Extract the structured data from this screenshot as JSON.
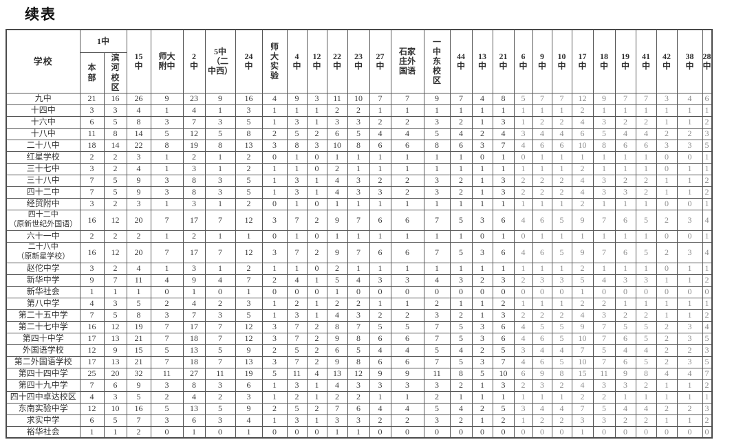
{
  "page": {
    "title": "续表"
  },
  "table": {
    "corner_header": "学校",
    "group_header": {
      "label": "1中",
      "children": [
        {
          "label": "本部",
          "display": "本\n部"
        },
        {
          "label": "滨河校区",
          "display": "滨\n河\n校\n区"
        }
      ]
    },
    "columns": [
      {
        "label": "15中",
        "display": "15\n中"
      },
      {
        "label": "师大附中",
        "display": "师大\n附中"
      },
      {
        "label": "2中",
        "display": "2\n中"
      },
      {
        "label": "5中（二中西）",
        "display": "5中\n（二\n中西）"
      },
      {
        "label": "24中",
        "display": "24\n中"
      },
      {
        "label": "师大实验",
        "display": "师\n大\n实\n验"
      },
      {
        "label": "4中",
        "display": "4\n中"
      },
      {
        "label": "12中",
        "display": "12\n中"
      },
      {
        "label": "22中",
        "display": "22\n中"
      },
      {
        "label": "23中",
        "display": "23\n中"
      },
      {
        "label": "27中",
        "display": "27\n中"
      },
      {
        "label": "石家庄外国语",
        "display": "石家\n庄外\n国语"
      },
      {
        "label": "一中东校区",
        "display": "一\n中\n东\n校\n区"
      },
      {
        "label": "44中",
        "display": "44\n中"
      },
      {
        "label": "13中",
        "display": "13\n中"
      },
      {
        "label": "21中",
        "display": "21\n中"
      },
      {
        "label": "6中",
        "display": "6\n中"
      },
      {
        "label": "9中",
        "display": "9\n中"
      },
      {
        "label": "10中",
        "display": "10\n中"
      },
      {
        "label": "17中",
        "display": "17\n中"
      },
      {
        "label": "18中",
        "display": "18\n中"
      },
      {
        "label": "19中",
        "display": "19\n中"
      },
      {
        "label": "41中",
        "display": "41\n中"
      },
      {
        "label": "42中",
        "display": "42\n中"
      },
      {
        "label": "38中",
        "display": "38\n中"
      },
      {
        "label": "28中",
        "display": "28\n中"
      }
    ],
    "rows": [
      {
        "school": "九中",
        "values": [
          21,
          16,
          26,
          9,
          23,
          9,
          16,
          4,
          9,
          3,
          11,
          10,
          7,
          7,
          9,
          7,
          4,
          8,
          5,
          7,
          7,
          12,
          9,
          7,
          7,
          3,
          4,
          6
        ]
      },
      {
        "school": "十四中",
        "values": [
          3,
          3,
          4,
          1,
          4,
          1,
          3,
          1,
          1,
          1,
          2,
          2,
          1,
          1,
          1,
          1,
          1,
          1,
          1,
          1,
          1,
          2,
          1,
          1,
          1,
          1,
          1,
          1
        ]
      },
      {
        "school": "十六中",
        "values": [
          6,
          5,
          8,
          3,
          7,
          3,
          5,
          1,
          3,
          1,
          3,
          3,
          2,
          2,
          3,
          2,
          1,
          3,
          1,
          2,
          2,
          4,
          3,
          2,
          2,
          1,
          1,
          2
        ]
      },
      {
        "school": "十八中",
        "values": [
          11,
          8,
          14,
          5,
          12,
          5,
          8,
          2,
          5,
          2,
          6,
          5,
          4,
          4,
          5,
          4,
          2,
          4,
          3,
          4,
          4,
          6,
          5,
          4,
          4,
          2,
          2,
          3
        ]
      },
      {
        "school": "二十八中",
        "values": [
          18,
          14,
          22,
          8,
          19,
          8,
          13,
          3,
          8,
          3,
          10,
          8,
          6,
          6,
          8,
          6,
          3,
          7,
          4,
          6,
          6,
          10,
          8,
          6,
          6,
          3,
          3,
          5
        ]
      },
      {
        "school": "红星学校",
        "values": [
          2,
          2,
          3,
          1,
          2,
          1,
          2,
          0,
          1,
          0,
          1,
          1,
          1,
          1,
          1,
          1,
          0,
          1,
          0,
          1,
          1,
          1,
          1,
          1,
          1,
          0,
          0,
          1
        ]
      },
      {
        "school": "三十七中",
        "values": [
          3,
          2,
          4,
          1,
          3,
          1,
          2,
          1,
          1,
          0,
          2,
          1,
          1,
          1,
          1,
          1,
          1,
          1,
          1,
          1,
          1,
          2,
          1,
          1,
          1,
          0,
          1,
          1
        ]
      },
      {
        "school": "三十八中",
        "values": [
          7,
          5,
          9,
          3,
          8,
          3,
          5,
          1,
          3,
          1,
          4,
          3,
          2,
          2,
          3,
          2,
          1,
          3,
          2,
          2,
          2,
          4,
          3,
          2,
          2,
          1,
          1,
          2
        ]
      },
      {
        "school": "四十二中",
        "values": [
          7,
          5,
          9,
          3,
          8,
          3,
          5,
          1,
          3,
          1,
          4,
          3,
          3,
          2,
          3,
          2,
          1,
          3,
          2,
          2,
          2,
          4,
          3,
          3,
          2,
          1,
          1,
          2
        ]
      },
      {
        "school": "经贸附中",
        "values": [
          3,
          2,
          3,
          1,
          3,
          1,
          2,
          0,
          1,
          0,
          1,
          1,
          1,
          1,
          1,
          1,
          1,
          1,
          1,
          1,
          1,
          2,
          1,
          1,
          1,
          0,
          0,
          1
        ]
      },
      {
        "school": "四十二中\n（原新世纪外国语）",
        "values": [
          16,
          12,
          20,
          7,
          17,
          7,
          12,
          3,
          7,
          2,
          9,
          7,
          6,
          6,
          7,
          5,
          3,
          6,
          4,
          6,
          5,
          9,
          7,
          6,
          5,
          2,
          3,
          4
        ]
      },
      {
        "school": "六十一中",
        "values": [
          2,
          2,
          2,
          1,
          2,
          1,
          1,
          0,
          1,
          0,
          1,
          1,
          1,
          1,
          1,
          1,
          0,
          1,
          0,
          1,
          1,
          1,
          1,
          1,
          1,
          0,
          0,
          1
        ]
      },
      {
        "school": "二十八中\n（原新星学校）",
        "values": [
          16,
          12,
          20,
          7,
          17,
          7,
          12,
          3,
          7,
          2,
          9,
          7,
          6,
          6,
          7,
          5,
          3,
          6,
          4,
          6,
          5,
          9,
          7,
          6,
          5,
          2,
          3,
          4
        ]
      },
      {
        "school": "赵佗中学",
        "values": [
          3,
          2,
          4,
          1,
          3,
          1,
          2,
          1,
          1,
          0,
          2,
          1,
          1,
          1,
          1,
          1,
          1,
          1,
          1,
          1,
          1,
          2,
          1,
          1,
          1,
          0,
          1,
          1
        ]
      },
      {
        "school": "新华中学",
        "values": [
          9,
          7,
          11,
          4,
          9,
          4,
          7,
          2,
          4,
          1,
          5,
          4,
          3,
          3,
          4,
          3,
          2,
          3,
          2,
          3,
          3,
          5,
          4,
          3,
          3,
          1,
          1,
          2
        ]
      },
      {
        "school": "新华社会",
        "values": [
          1,
          1,
          1,
          0,
          1,
          0,
          1,
          0,
          0,
          0,
          1,
          0,
          0,
          0,
          0,
          0,
          0,
          0,
          0,
          0,
          0,
          1,
          0,
          0,
          0,
          0,
          0,
          0
        ]
      },
      {
        "school": "第八中学",
        "values": [
          4,
          3,
          5,
          2,
          4,
          2,
          3,
          1,
          2,
          1,
          2,
          2,
          1,
          1,
          2,
          1,
          1,
          2,
          1,
          1,
          1,
          2,
          2,
          1,
          1,
          1,
          1,
          1
        ]
      },
      {
        "school": "第二十五中学",
        "values": [
          7,
          5,
          8,
          3,
          7,
          3,
          5,
          1,
          3,
          1,
          4,
          3,
          2,
          2,
          3,
          2,
          1,
          3,
          2,
          2,
          2,
          4,
          3,
          2,
          2,
          1,
          1,
          2
        ]
      },
      {
        "school": "第二十七中学",
        "values": [
          16,
          12,
          19,
          7,
          17,
          7,
          12,
          3,
          7,
          2,
          8,
          7,
          5,
          5,
          7,
          5,
          3,
          6,
          4,
          5,
          5,
          9,
          7,
          5,
          5,
          2,
          3,
          4
        ]
      },
      {
        "school": "第四十中学",
        "values": [
          17,
          13,
          21,
          7,
          18,
          7,
          12,
          3,
          7,
          2,
          9,
          8,
          6,
          6,
          7,
          5,
          3,
          6,
          4,
          6,
          5,
          10,
          7,
          6,
          5,
          2,
          3,
          5
        ]
      },
      {
        "school": "外国语学校",
        "values": [
          12,
          9,
          15,
          5,
          13,
          5,
          9,
          2,
          5,
          2,
          6,
          5,
          4,
          4,
          5,
          4,
          2,
          5,
          3,
          4,
          4,
          7,
          5,
          4,
          4,
          2,
          2,
          3
        ]
      },
      {
        "school": "第二外国语学校",
        "values": [
          17,
          13,
          21,
          7,
          18,
          7,
          13,
          3,
          7,
          2,
          9,
          8,
          6,
          6,
          7,
          5,
          3,
          7,
          4,
          6,
          5,
          10,
          7,
          6,
          5,
          2,
          3,
          5
        ]
      },
      {
        "school": "第四十四中学",
        "values": [
          25,
          20,
          32,
          11,
          27,
          11,
          19,
          5,
          11,
          4,
          13,
          12,
          9,
          9,
          11,
          8,
          5,
          10,
          6,
          9,
          8,
          15,
          11,
          9,
          8,
          4,
          4,
          7
        ]
      },
      {
        "school": "第四十九中学",
        "values": [
          7,
          6,
          9,
          3,
          8,
          3,
          6,
          1,
          3,
          1,
          4,
          3,
          3,
          3,
          3,
          2,
          1,
          3,
          2,
          3,
          2,
          4,
          3,
          3,
          2,
          1,
          1,
          2
        ]
      },
      {
        "school": "四十四中卓达校区",
        "values": [
          4,
          3,
          5,
          2,
          4,
          2,
          3,
          1,
          2,
          1,
          2,
          2,
          1,
          1,
          2,
          1,
          1,
          1,
          1,
          1,
          1,
          2,
          2,
          1,
          1,
          1,
          1,
          1
        ]
      },
      {
        "school": "东南实验中学",
        "values": [
          12,
          10,
          16,
          5,
          13,
          5,
          9,
          2,
          5,
          2,
          7,
          6,
          4,
          4,
          5,
          4,
          2,
          5,
          3,
          4,
          4,
          7,
          5,
          4,
          4,
          2,
          2,
          3
        ]
      },
      {
        "school": "求实中学",
        "values": [
          6,
          5,
          7,
          3,
          6,
          3,
          4,
          1,
          3,
          1,
          3,
          3,
          2,
          2,
          3,
          2,
          1,
          2,
          1,
          2,
          2,
          3,
          3,
          2,
          2,
          1,
          1,
          2
        ]
      },
      {
        "school": "裕华社会",
        "values": [
          1,
          1,
          2,
          0,
          1,
          0,
          1,
          0,
          0,
          0,
          1,
          1,
          0,
          0,
          0,
          0,
          0,
          0,
          0,
          0,
          0,
          1,
          0,
          0,
          0,
          0,
          0,
          0
        ]
      }
    ]
  }
}
